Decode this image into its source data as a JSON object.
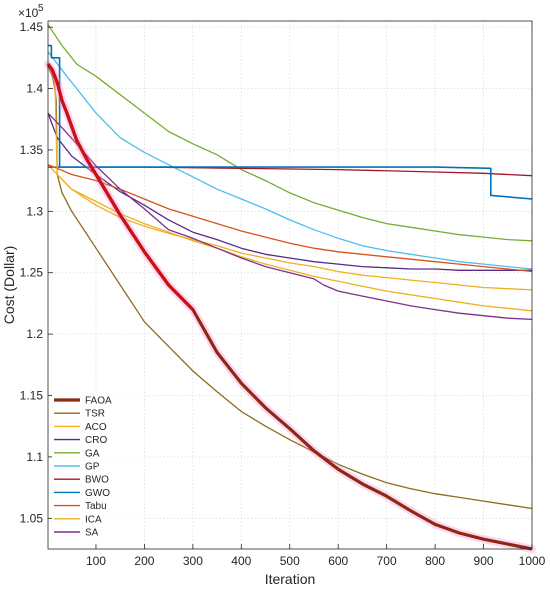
{
  "chart_data": {
    "type": "line",
    "title": "",
    "xlabel": "Iteration",
    "ylabel": "Cost (Dollar)",
    "y_multiplier_label": "×10",
    "y_multiplier_exponent": "5",
    "xlim": [
      1,
      1000
    ],
    "ylim": [
      1.025,
      1.455
    ],
    "xticks": [
      100,
      200,
      300,
      400,
      500,
      600,
      700,
      800,
      900,
      1000
    ],
    "yticks": [
      1.05,
      1.1,
      1.15,
      1.2,
      1.25,
      1.3,
      1.35,
      1.4,
      1.45
    ],
    "grid": true,
    "legend_position": "bottom-left",
    "series": [
      {
        "name": "FAOA",
        "color": "#cc1111",
        "color_late": "#8b2a10",
        "width": 3.2,
        "highlight": true,
        "x": [
          1,
          10,
          20,
          30,
          40,
          60,
          80,
          100,
          150,
          200,
          250,
          300,
          350,
          400,
          450,
          500,
          550,
          600,
          650,
          700,
          750,
          800,
          850,
          900,
          950,
          1000
        ],
        "y": [
          1.42,
          1.415,
          1.405,
          1.39,
          1.38,
          1.358,
          1.343,
          1.33,
          1.297,
          1.267,
          1.24,
          1.22,
          1.185,
          1.16,
          1.14,
          1.123,
          1.105,
          1.09,
          1.078,
          1.068,
          1.056,
          1.045,
          1.038,
          1.033,
          1.029,
          1.025
        ]
      },
      {
        "name": "TSR",
        "color": "#8b6d1a",
        "width": 1.3,
        "x": [
          1,
          5,
          10,
          15,
          18,
          20,
          30,
          50,
          80,
          100,
          150,
          200,
          250,
          300,
          350,
          400,
          450,
          500,
          550,
          600,
          650,
          700,
          750,
          800,
          850,
          900,
          950,
          1000
        ],
        "y": [
          1.42,
          1.415,
          1.41,
          1.4,
          1.39,
          1.33,
          1.315,
          1.3,
          1.282,
          1.27,
          1.24,
          1.21,
          1.19,
          1.17,
          1.153,
          1.137,
          1.125,
          1.114,
          1.104,
          1.094,
          1.086,
          1.079,
          1.074,
          1.07,
          1.067,
          1.064,
          1.061,
          1.058
        ]
      },
      {
        "name": "ACO",
        "color": "#f0b020",
        "width": 1.3,
        "x": [
          1,
          20,
          50,
          100,
          150,
          200,
          250,
          300,
          350,
          400,
          450,
          500,
          550,
          600,
          650,
          700,
          750,
          800,
          850,
          900,
          950,
          1000
        ],
        "y": [
          1.338,
          1.33,
          1.318,
          1.305,
          1.295,
          1.288,
          1.282,
          1.277,
          1.272,
          1.266,
          1.262,
          1.258,
          1.255,
          1.251,
          1.248,
          1.246,
          1.244,
          1.242,
          1.24,
          1.238,
          1.237,
          1.236
        ]
      },
      {
        "name": "CRO",
        "color": "#5a2a88",
        "width": 1.3,
        "x": [
          1,
          20,
          50,
          100,
          150,
          200,
          250,
          300,
          350,
          400,
          450,
          500,
          550,
          600,
          650,
          700,
          750,
          800,
          850,
          900,
          950,
          1000
        ],
        "y": [
          1.38,
          1.36,
          1.345,
          1.33,
          1.316,
          1.305,
          1.293,
          1.283,
          1.277,
          1.27,
          1.265,
          1.262,
          1.259,
          1.257,
          1.255,
          1.254,
          1.253,
          1.253,
          1.252,
          1.252,
          1.252,
          1.252
        ]
      },
      {
        "name": "GA",
        "color": "#77ac30",
        "width": 1.3,
        "x": [
          1,
          30,
          60,
          100,
          150,
          200,
          250,
          300,
          350,
          400,
          450,
          500,
          550,
          600,
          650,
          700,
          750,
          800,
          850,
          900,
          950,
          1000
        ],
        "y": [
          1.452,
          1.435,
          1.42,
          1.41,
          1.395,
          1.38,
          1.365,
          1.355,
          1.346,
          1.334,
          1.325,
          1.315,
          1.307,
          1.301,
          1.295,
          1.29,
          1.287,
          1.284,
          1.281,
          1.279,
          1.277,
          1.276
        ]
      },
      {
        "name": "GP",
        "color": "#4dbeee",
        "width": 1.3,
        "x": [
          1,
          40,
          60,
          80,
          100,
          150,
          200,
          250,
          300,
          350,
          400,
          450,
          500,
          550,
          600,
          650,
          700,
          750,
          800,
          850,
          900,
          950,
          1000
        ],
        "y": [
          1.43,
          1.41,
          1.4,
          1.39,
          1.38,
          1.36,
          1.348,
          1.338,
          1.328,
          1.318,
          1.31,
          1.302,
          1.293,
          1.285,
          1.278,
          1.272,
          1.268,
          1.265,
          1.262,
          1.259,
          1.257,
          1.255,
          1.253
        ]
      },
      {
        "name": "BWO",
        "color": "#a2142f",
        "width": 1.3,
        "x": [
          1,
          200,
          400,
          600,
          800,
          900,
          1000
        ],
        "y": [
          1.336,
          1.336,
          1.335,
          1.334,
          1.332,
          1.331,
          1.329
        ]
      },
      {
        "name": "GWO",
        "color": "#0072bd",
        "width": 1.6,
        "x": [
          1,
          8,
          8,
          25,
          25,
          35,
          35,
          300,
          600,
          800,
          915,
          915,
          1000
        ],
        "y": [
          1.435,
          1.435,
          1.425,
          1.425,
          1.336,
          1.336,
          1.336,
          1.336,
          1.336,
          1.336,
          1.335,
          1.313,
          1.31
        ]
      },
      {
        "name": "Tabu",
        "color": "#d95319",
        "width": 1.3,
        "x": [
          1,
          20,
          50,
          100,
          150,
          200,
          250,
          300,
          350,
          400,
          450,
          500,
          550,
          600,
          650,
          700,
          750,
          800,
          850,
          900,
          950,
          1000
        ],
        "y": [
          1.338,
          1.335,
          1.33,
          1.325,
          1.318,
          1.31,
          1.302,
          1.296,
          1.29,
          1.284,
          1.279,
          1.274,
          1.27,
          1.267,
          1.265,
          1.263,
          1.261,
          1.259,
          1.257,
          1.255,
          1.253,
          1.251
        ]
      },
      {
        "name": "ICA",
        "color": "#edb120",
        "width": 1.3,
        "x": [
          1,
          15,
          20,
          50,
          100,
          150,
          200,
          250,
          300,
          350,
          400,
          450,
          500,
          550,
          600,
          650,
          700,
          750,
          800,
          850,
          900,
          950,
          1000
        ],
        "y": [
          1.42,
          1.41,
          1.33,
          1.318,
          1.308,
          1.298,
          1.29,
          1.283,
          1.276,
          1.27,
          1.263,
          1.257,
          1.252,
          1.247,
          1.243,
          1.239,
          1.235,
          1.232,
          1.229,
          1.226,
          1.223,
          1.221,
          1.219
        ]
      },
      {
        "name": "SA",
        "color": "#7e2f8e",
        "width": 1.3,
        "x": [
          1,
          30,
          60,
          100,
          150,
          200,
          250,
          300,
          350,
          400,
          450,
          500,
          550,
          570,
          600,
          650,
          700,
          750,
          800,
          850,
          900,
          950,
          1000
        ],
        "y": [
          1.38,
          1.368,
          1.355,
          1.337,
          1.318,
          1.302,
          1.285,
          1.278,
          1.27,
          1.262,
          1.255,
          1.25,
          1.245,
          1.24,
          1.235,
          1.231,
          1.227,
          1.223,
          1.22,
          1.217,
          1.215,
          1.213,
          1.212
        ]
      }
    ]
  }
}
